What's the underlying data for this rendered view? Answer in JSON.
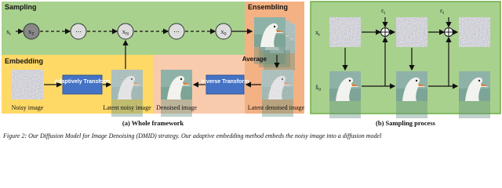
{
  "panel_a": {
    "sampling": {
      "title": "Sampling",
      "nodes": [
        {
          "base": "x",
          "sub": "t"
        },
        {
          "base": "x",
          "sub": "T"
        },
        {
          "base": "⋯"
        },
        {
          "base": "x",
          "sub": "N"
        },
        {
          "base": "⋯"
        },
        {
          "base": "x",
          "sub": "0"
        }
      ]
    },
    "ensembling": {
      "title": "Ensembling",
      "step": "Average"
    },
    "embedding": {
      "title": "Embedding",
      "transform": "Adaptively Transform"
    },
    "inverse": "Inverse Transform",
    "images": [
      "Noisy image",
      "Latent noisy image",
      "Denoised image",
      "Latent denoised image"
    ],
    "caption": "(a) Whole framework"
  },
  "panel_b": {
    "rows": [
      {
        "base": "x",
        "sub": "t"
      },
      {
        "base": "x̂",
        "sub": "0"
      }
    ],
    "noise": {
      "base": "ε",
      "sub": "t"
    },
    "caption": "(b) Sampling process"
  },
  "figure_caption": "Figure 2: Our Diffusion Model for Image Denoising (DMID) strategy. Our adaptive embedding method embeds the noisy image into a diffusion model"
}
